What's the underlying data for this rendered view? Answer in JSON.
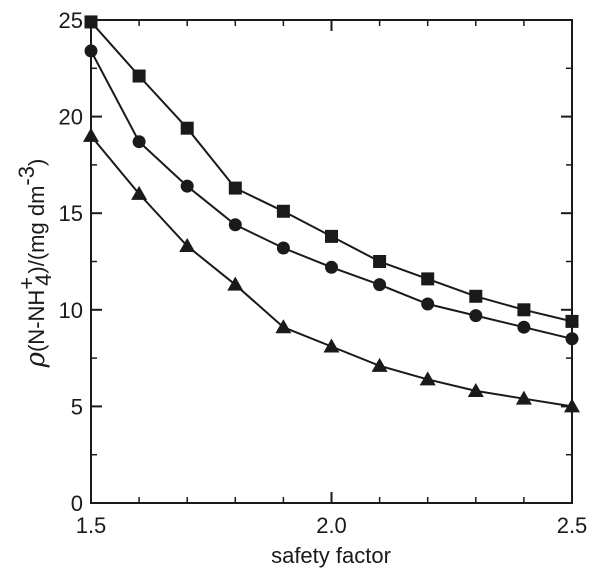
{
  "chart_data": {
    "type": "line",
    "title": "",
    "xlabel": "safety factor",
    "ylabel": {
      "symbol": "ρ",
      "text_pre": "(N-NH",
      "subscript": "4",
      "superscript": "+",
      "text_post": ")/(mg dm",
      "exponent": "-3",
      "close": ")"
    },
    "xlim": [
      1.5,
      2.5
    ],
    "ylim": [
      0,
      25
    ],
    "x_ticks": [
      1.5,
      2.0,
      2.5
    ],
    "x_tick_labels": [
      "1.5",
      "2.0",
      "2.5"
    ],
    "x_minor_ticks": [
      1.6,
      1.7,
      1.8,
      1.9,
      2.1,
      2.2,
      2.3,
      2.4
    ],
    "y_ticks": [
      0,
      5,
      10,
      15,
      20,
      25
    ],
    "y_tick_labels": [
      "0",
      "5",
      "10",
      "15",
      "20",
      "25"
    ],
    "grid": false,
    "color": "#1a1a1a",
    "x": [
      1.5,
      1.6,
      1.7,
      1.8,
      1.9,
      2.0,
      2.1,
      2.2,
      2.3,
      2.4,
      2.5
    ],
    "series": [
      {
        "marker": "square",
        "values": [
          24.9,
          22.1,
          19.4,
          16.3,
          15.1,
          13.8,
          12.5,
          11.6,
          10.7,
          10.0,
          9.4
        ]
      },
      {
        "marker": "circle",
        "values": [
          23.4,
          18.7,
          16.4,
          14.4,
          13.2,
          12.2,
          11.3,
          10.3,
          9.7,
          9.1,
          8.5
        ]
      },
      {
        "marker": "triangle",
        "values": [
          19.0,
          16.0,
          13.3,
          11.3,
          9.1,
          8.1,
          7.1,
          6.4,
          5.8,
          5.4,
          5.0
        ]
      }
    ]
  }
}
